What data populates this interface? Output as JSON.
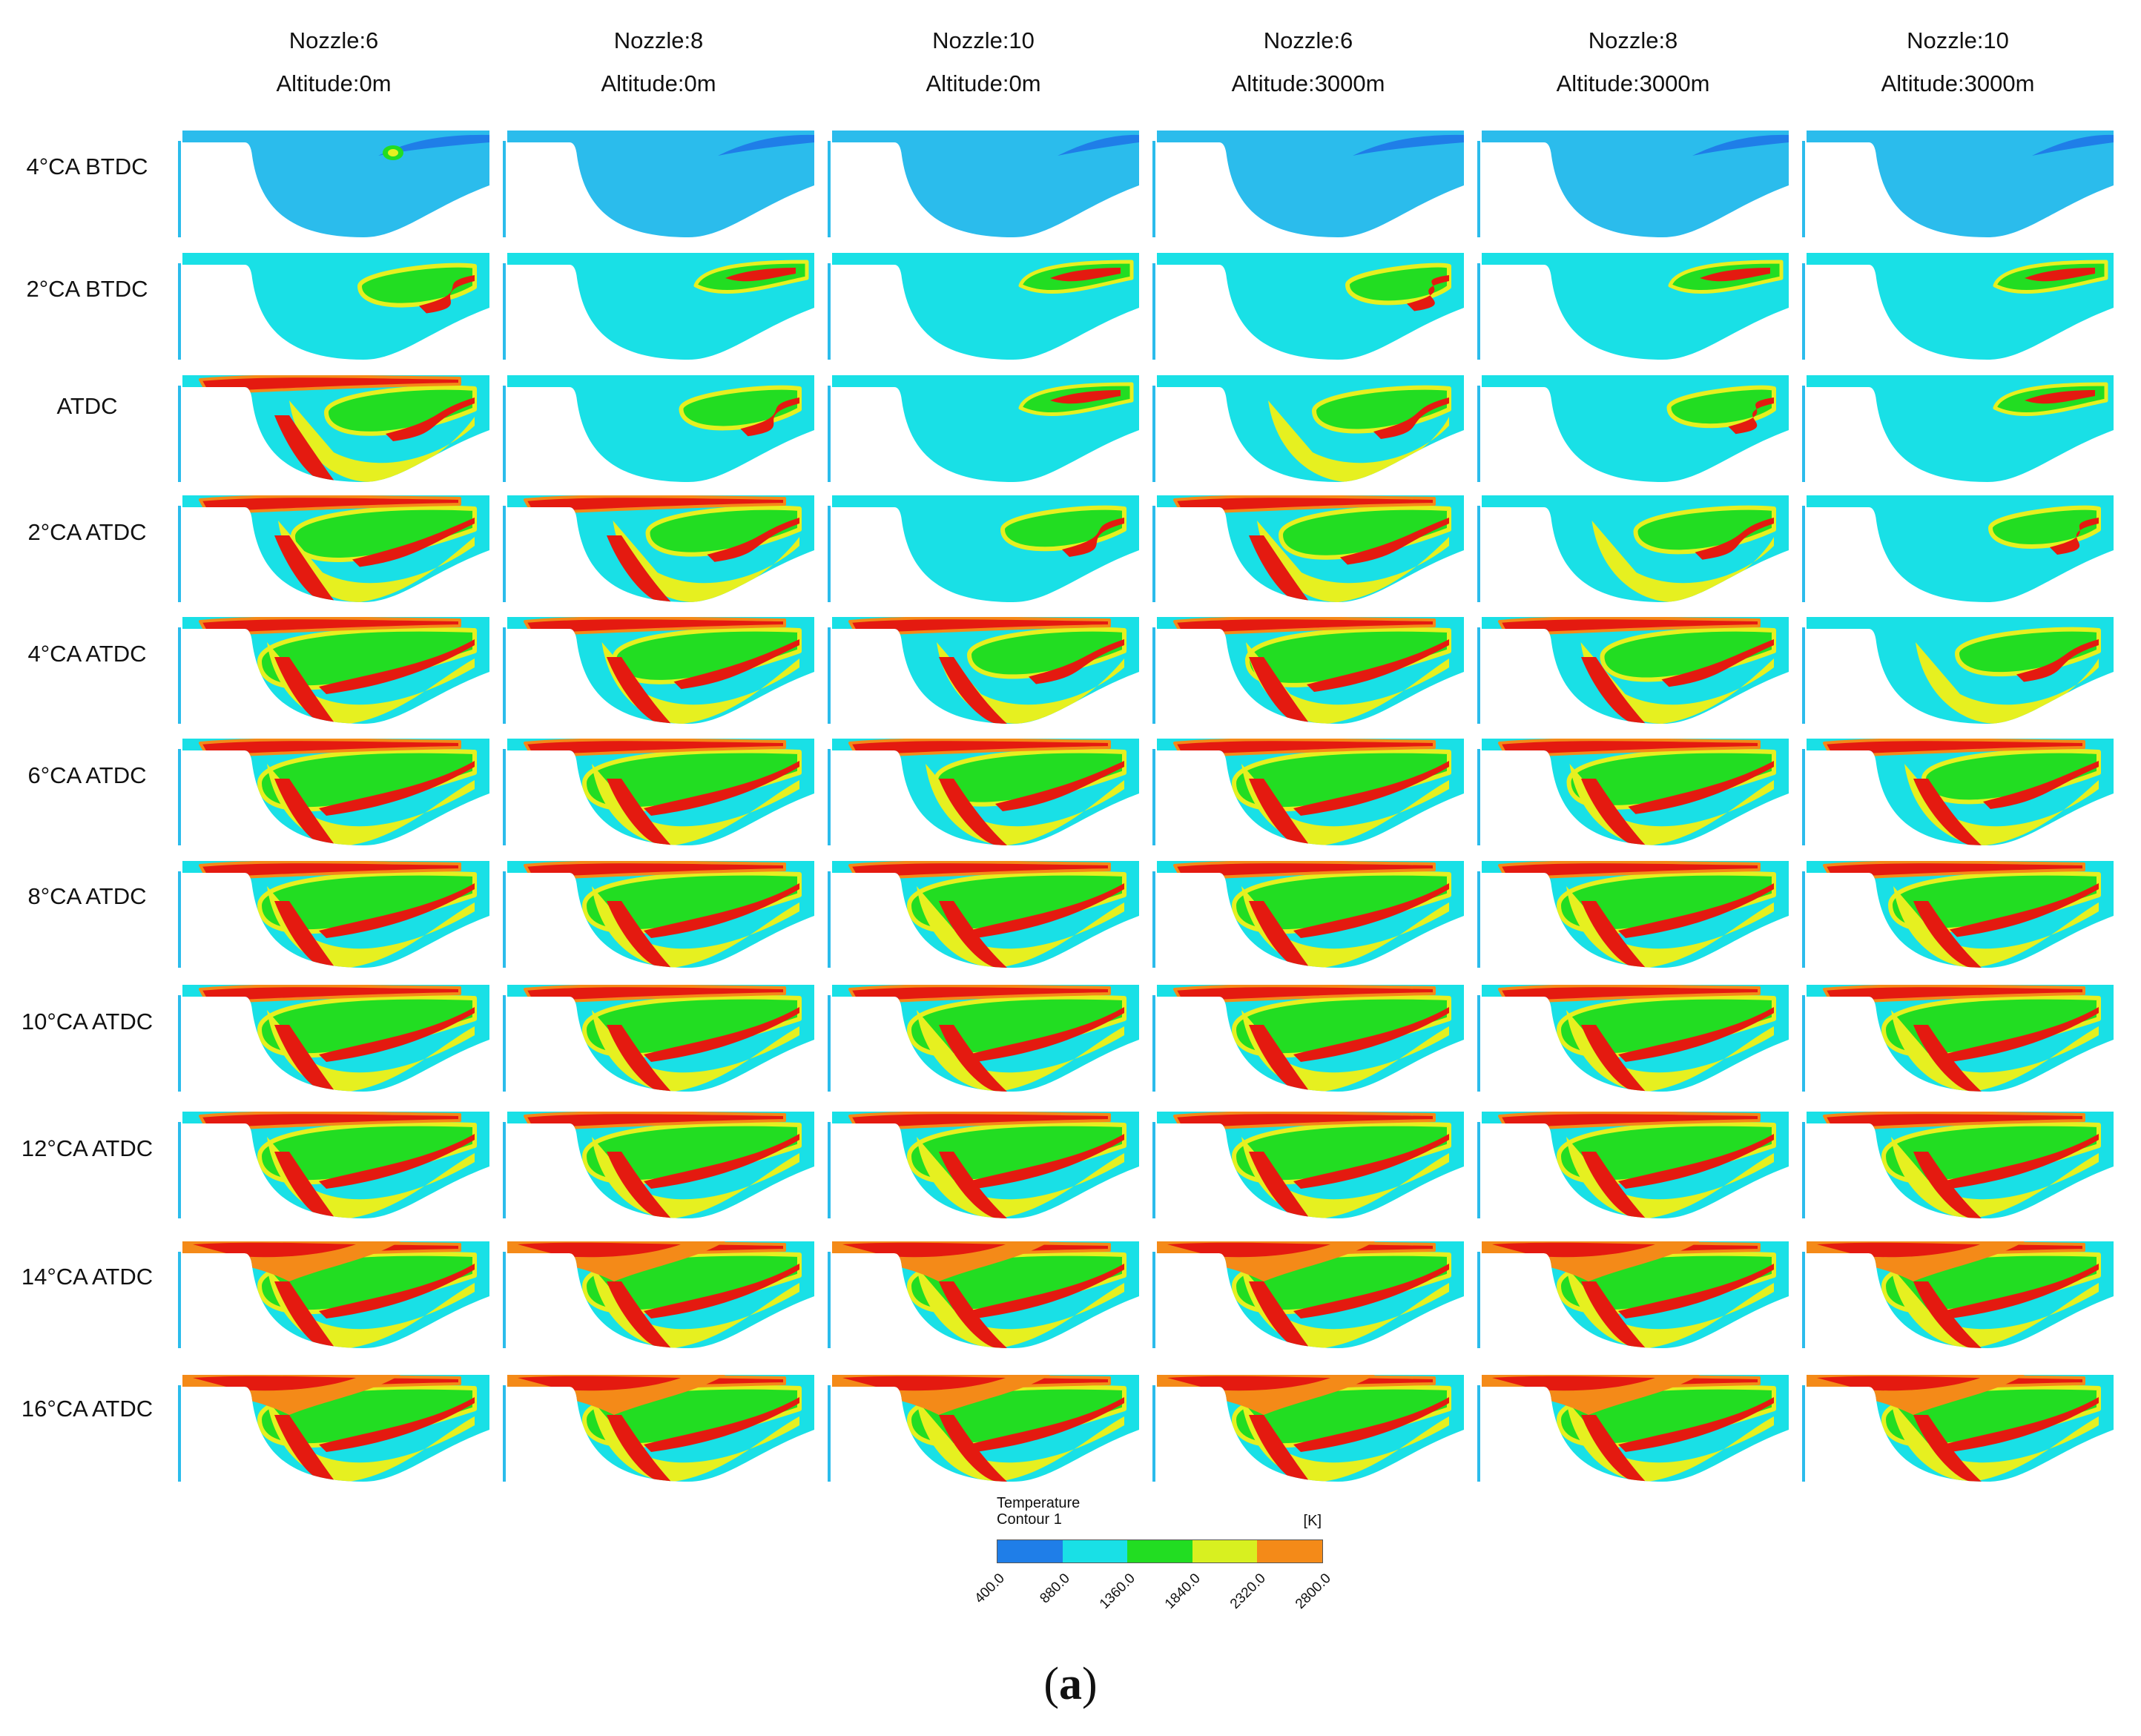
{
  "columns": [
    {
      "nozzle": "Nozzle:6",
      "altitude": "Altitude:0m"
    },
    {
      "nozzle": "Nozzle:8",
      "altitude": "Altitude:0m"
    },
    {
      "nozzle": "Nozzle:10",
      "altitude": "Altitude:0m"
    },
    {
      "nozzle": "Nozzle:6",
      "altitude": "Altitude:3000m"
    },
    {
      "nozzle": "Nozzle:8",
      "altitude": "Altitude:3000m"
    },
    {
      "nozzle": "Nozzle:10",
      "altitude": "Altitude:3000m"
    }
  ],
  "rows": [
    "4°CA BTDC",
    "2°CA BTDC",
    "ATDC",
    "2°CA ATDC",
    "4°CA ATDC",
    "6°CA ATDC",
    "8°CA ATDC",
    "10°CA ATDC",
    "12°CA ATDC",
    "14°CA ATDC",
    "16°CA ATDC"
  ],
  "legend": {
    "title_line1": "Temperature",
    "title_line2": "Contour 1",
    "unit": "[K]",
    "ticks": [
      "400.0",
      "880.0",
      "1360.0",
      "1840.0",
      "2320.0",
      "2800.0"
    ],
    "colors": [
      "#1f7ee8",
      "#19e0e6",
      "#22dd22",
      "#d8f020",
      "#f48a18"
    ]
  },
  "palette": {
    "cold": "#19e0e6",
    "cool": "#2bbcec",
    "deep": "#1f7ee8",
    "green": "#22dd22",
    "yellow": "#e6f020",
    "orange": "#f48a18",
    "red": "#e41a10"
  },
  "caption": {
    "open": "(",
    "letter": "a",
    "close": ")"
  }
}
